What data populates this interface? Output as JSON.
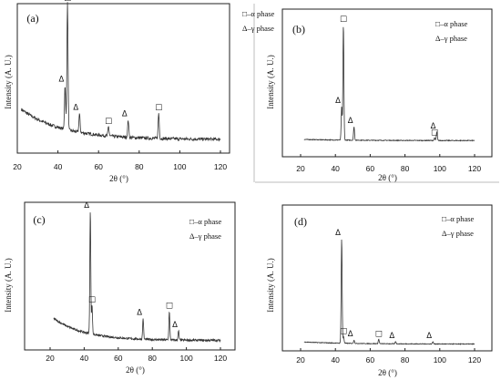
{
  "legend": {
    "alpha": "□–α phase",
    "gamma": "Δ–γ phase"
  },
  "marker_symbols": {
    "alpha": "□",
    "gamma": "Δ"
  },
  "chart_data": [
    {
      "type": "line",
      "panel": "(a)",
      "xlabel": "2θ (°)",
      "ylabel": "Intensity (A. U.)",
      "xlim": [
        20,
        120
      ],
      "xticks": [
        20,
        40,
        60,
        80,
        100,
        120
      ],
      "ylim": [
        0,
        1
      ],
      "grid": false,
      "legend_position": "top-right",
      "background": {
        "start": 0.27,
        "end": 0.02,
        "decay": 20,
        "noise": 0.012
      },
      "peaks": [
        {
          "x": 43.5,
          "y": 0.33,
          "phase": "gamma"
        },
        {
          "x": 44.7,
          "y": 0.95,
          "phase": "alpha"
        },
        {
          "x": 50.6,
          "y": 0.14,
          "phase": "gamma"
        },
        {
          "x": 64.9,
          "y": 0.07,
          "phase": "alpha"
        },
        {
          "x": 74.6,
          "y": 0.13,
          "phase": "gamma"
        },
        {
          "x": 89.6,
          "y": 0.19,
          "phase": "alpha"
        }
      ]
    },
    {
      "type": "line",
      "panel": "(b)",
      "xlabel": "2θ (°)",
      "ylabel": "Intensity (A. U.)",
      "xlim": [
        20,
        120
      ],
      "xticks": [
        20,
        40,
        60,
        80,
        100,
        120
      ],
      "ylim": [
        0,
        1
      ],
      "grid": false,
      "legend_position": "top-right",
      "background": {
        "start": 0.03,
        "end": 0.02,
        "decay": 30,
        "noise": 0.003
      },
      "peaks": [
        {
          "x": 43.6,
          "y": 0.27,
          "phase": "gamma"
        },
        {
          "x": 44.6,
          "y": 0.94,
          "phase": "alpha"
        },
        {
          "x": 50.7,
          "y": 0.11,
          "phase": "gamma"
        },
        {
          "x": 97.0,
          "y": 0.02,
          "phase": "alpha"
        },
        {
          "x": 98.3,
          "y": 0.07,
          "phase": "gamma"
        }
      ]
    },
    {
      "type": "line",
      "panel": "(c)",
      "xlabel": "2θ (°)",
      "ylabel": "Intensity (A. U.)",
      "xlim": [
        20,
        120
      ],
      "xticks": [
        20,
        40,
        60,
        80,
        100,
        120
      ],
      "ylim": [
        0,
        1
      ],
      "grid": false,
      "legend_position": "top-right",
      "background": {
        "start": 0.2,
        "end": 0.01,
        "decay": 18,
        "noise": 0.008
      },
      "peaks": [
        {
          "x": 43.6,
          "y": 0.94,
          "phase": "gamma"
        },
        {
          "x": 44.6,
          "y": 0.22,
          "phase": "alpha"
        },
        {
          "x": 74.6,
          "y": 0.16,
          "phase": "gamma"
        },
        {
          "x": 90.0,
          "y": 0.22,
          "phase": "alpha"
        },
        {
          "x": 95.4,
          "y": 0.07,
          "phase": "gamma"
        }
      ]
    },
    {
      "type": "line",
      "panel": "(d)",
      "xlabel": "2θ (°)",
      "ylabel": "Intensity (A. U.)",
      "xlim": [
        20,
        120
      ],
      "xticks": [
        20,
        40,
        60,
        80,
        100,
        120
      ],
      "ylim": [
        0,
        1
      ],
      "grid": false,
      "legend_position": "top-right",
      "background": {
        "start": 0.04,
        "end": 0.02,
        "decay": 25,
        "noise": 0.003
      },
      "peaks": [
        {
          "x": 43.6,
          "y": 0.94,
          "phase": "gamma"
        },
        {
          "x": 44.7,
          "y": 0.06,
          "phase": "alpha"
        },
        {
          "x": 50.7,
          "y": 0.03,
          "phase": "gamma"
        },
        {
          "x": 64.9,
          "y": 0.04,
          "phase": "alpha"
        },
        {
          "x": 74.6,
          "y": 0.02,
          "phase": "gamma"
        },
        {
          "x": 96.0,
          "y": 0.02,
          "phase": "gamma"
        }
      ]
    }
  ]
}
